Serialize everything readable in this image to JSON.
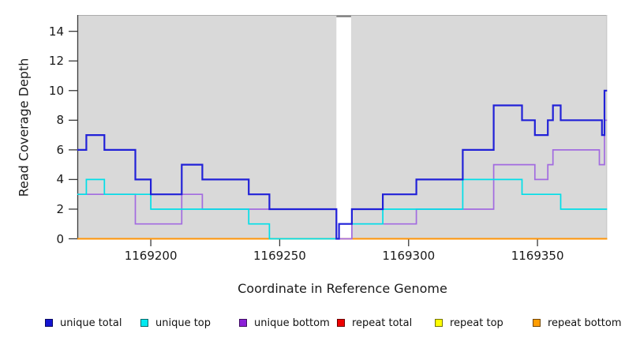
{
  "chart_data": {
    "type": "line",
    "subtype": "step",
    "title": "",
    "xlabel": "Coordinate in Reference Genome",
    "ylabel": "Read Coverage Depth",
    "xlim": [
      1169171.5,
      1169377
    ],
    "ylim": [
      0,
      15.1
    ],
    "x_ticks": [
      1169200,
      1169250,
      1169300,
      1169350
    ],
    "y_ticks": [
      0,
      2,
      4,
      6,
      8,
      10,
      12,
      14
    ],
    "grid": "off",
    "panel_bg": "#d9d9d9",
    "panel_top_edge": "#ababab",
    "panel_right_edge": "#c6c6c6",
    "axis_color": "#3a3a3a",
    "gap_band": {
      "x_start": 1169272,
      "x_end": 1169277.7,
      "color": "#ffffff",
      "top_border": "#7d7d7d"
    },
    "series": [
      {
        "name": "repeat total",
        "color": "#e60000",
        "stroke_width": 2,
        "points": [
          [
            1169171.5,
            0
          ]
        ]
      },
      {
        "name": "repeat top",
        "color": "#fff200",
        "stroke_width": 2,
        "points": [
          [
            1169171.5,
            0
          ]
        ]
      },
      {
        "name": "repeat bottom",
        "color": "#ff9408",
        "stroke_width": 2,
        "points": [
          [
            1169171.5,
            0
          ]
        ]
      },
      {
        "name": "unique bottom",
        "color": "#a26be0",
        "stroke_width": 1.7,
        "points": [
          [
            1169171.5,
            3
          ],
          [
            1169194,
            1
          ],
          [
            1169212,
            3
          ],
          [
            1169220,
            2
          ],
          [
            1169272,
            0
          ],
          [
            1169278,
            1
          ],
          [
            1169303,
            2
          ],
          [
            1169333,
            5
          ],
          [
            1169349,
            4
          ],
          [
            1169354,
            5
          ],
          [
            1169356,
            6
          ],
          [
            1169374,
            5
          ],
          [
            1169376,
            8
          ]
        ]
      },
      {
        "name": "unique top",
        "color": "#00dfe8",
        "stroke_width": 1.7,
        "points": [
          [
            1169171.5,
            3
          ],
          [
            1169175,
            4
          ],
          [
            1169182,
            3
          ],
          [
            1169200,
            2
          ],
          [
            1169238,
            1
          ],
          [
            1169246,
            0
          ],
          [
            1169273,
            1
          ],
          [
            1169290,
            2
          ],
          [
            1169321,
            4
          ],
          [
            1169344,
            3
          ],
          [
            1169359,
            2
          ]
        ]
      },
      {
        "name": "unique total",
        "color": "#2121d8",
        "stroke_width": 2.2,
        "points": [
          [
            1169171.5,
            6
          ],
          [
            1169175,
            7
          ],
          [
            1169182,
            6
          ],
          [
            1169194,
            4
          ],
          [
            1169200,
            3
          ],
          [
            1169212,
            5
          ],
          [
            1169220,
            4
          ],
          [
            1169238,
            3
          ],
          [
            1169246,
            2
          ],
          [
            1169272,
            0
          ],
          [
            1169273,
            1
          ],
          [
            1169278,
            2
          ],
          [
            1169290,
            3
          ],
          [
            1169303,
            4
          ],
          [
            1169321,
            6
          ],
          [
            1169333,
            9
          ],
          [
            1169344,
            8
          ],
          [
            1169349,
            7
          ],
          [
            1169354,
            8
          ],
          [
            1169356,
            9
          ],
          [
            1169359,
            8
          ],
          [
            1169375,
            7
          ],
          [
            1169376,
            10
          ]
        ]
      }
    ],
    "legend": [
      {
        "label": "unique total",
        "color": "#1414d2"
      },
      {
        "label": "unique top",
        "color": "#00eaf0"
      },
      {
        "label": "unique bottom",
        "color": "#8c20d8"
      },
      {
        "label": "repeat total",
        "color": "#ee0000"
      },
      {
        "label": "repeat top",
        "color": "#ffff00"
      },
      {
        "label": "repeat bottom",
        "color": "#ff9d00"
      }
    ],
    "legend_position": "bottom"
  }
}
